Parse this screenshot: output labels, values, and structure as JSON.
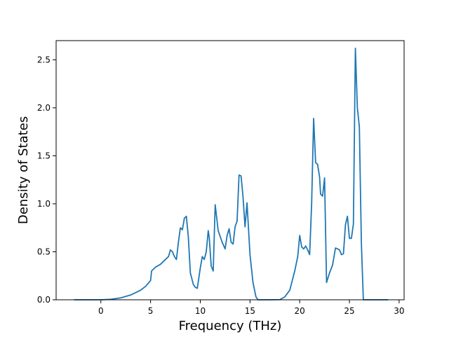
{
  "chart_data": {
    "type": "line",
    "title": "",
    "xlabel": "Frequency (THz)",
    "ylabel": "Density of States",
    "xlim": [
      -4.5,
      30.5
    ],
    "ylim": [
      0,
      2.7
    ],
    "x_ticks": [
      0,
      5,
      10,
      15,
      20,
      25,
      30
    ],
    "y_ticks": [
      0.0,
      0.5,
      1.0,
      1.5,
      2.0,
      2.5
    ],
    "x_tick_labels": [
      "0",
      "5",
      "10",
      "15",
      "20",
      "25",
      "30"
    ],
    "y_tick_labels": [
      "0.0",
      "0.5",
      "1.0",
      "1.5",
      "2.0",
      "2.5"
    ],
    "grid": false,
    "legend": "none",
    "color": "#1f77b4",
    "series": [
      {
        "x": [
          -2.7,
          0,
          1,
          2,
          3,
          4,
          4.5,
          5.0,
          5.1,
          5.5,
          6.0,
          6.5,
          6.8,
          7.0,
          7.2,
          7.4,
          7.6,
          7.8,
          8.0,
          8.2,
          8.4,
          8.6,
          8.8,
          9.0,
          9.3,
          9.5,
          9.7,
          10.0,
          10.2,
          10.4,
          10.6,
          10.8,
          10.9,
          11.1,
          11.3,
          11.5,
          11.8,
          12.0,
          12.2,
          12.5,
          12.7,
          12.9,
          13.1,
          13.3,
          13.5,
          13.7,
          13.9,
          14.1,
          14.3,
          14.5,
          14.7,
          15.0,
          15.3,
          15.6,
          15.8,
          16,
          17,
          18,
          18.5,
          19.0,
          19.5,
          19.8,
          20.0,
          20.2,
          20.4,
          20.6,
          20.8,
          21.0,
          21.2,
          21.4,
          21.6,
          21.8,
          22.0,
          22.1,
          22.3,
          22.5,
          22.7,
          23.0,
          23.3,
          23.6,
          23.8,
          24.0,
          24.2,
          24.4,
          24.6,
          24.8,
          25.0,
          25.2,
          25.4,
          25.6,
          25.8,
          26.0,
          26.2,
          26.4,
          27,
          28,
          28.9
        ],
        "y": [
          0,
          0,
          0.005,
          0.02,
          0.05,
          0.1,
          0.14,
          0.2,
          0.3,
          0.34,
          0.37,
          0.42,
          0.45,
          0.52,
          0.5,
          0.45,
          0.42,
          0.6,
          0.75,
          0.73,
          0.85,
          0.87,
          0.65,
          0.28,
          0.16,
          0.13,
          0.12,
          0.33,
          0.45,
          0.42,
          0.5,
          0.72,
          0.65,
          0.35,
          0.3,
          0.99,
          0.72,
          0.66,
          0.6,
          0.53,
          0.67,
          0.74,
          0.6,
          0.58,
          0.76,
          0.82,
          1.3,
          1.29,
          1.07,
          0.76,
          1.01,
          0.47,
          0.18,
          0.03,
          0,
          0,
          0,
          0.002,
          0.03,
          0.1,
          0.3,
          0.45,
          0.67,
          0.55,
          0.53,
          0.56,
          0.52,
          0.47,
          1.0,
          1.89,
          1.43,
          1.41,
          1.28,
          1.1,
          1.08,
          1.27,
          0.18,
          0.28,
          0.36,
          0.54,
          0.53,
          0.52,
          0.47,
          0.48,
          0.78,
          0.87,
          0.64,
          0.64,
          0.79,
          2.62,
          2.0,
          1.8,
          0.6,
          0,
          0,
          0,
          0
        ]
      }
    ]
  }
}
